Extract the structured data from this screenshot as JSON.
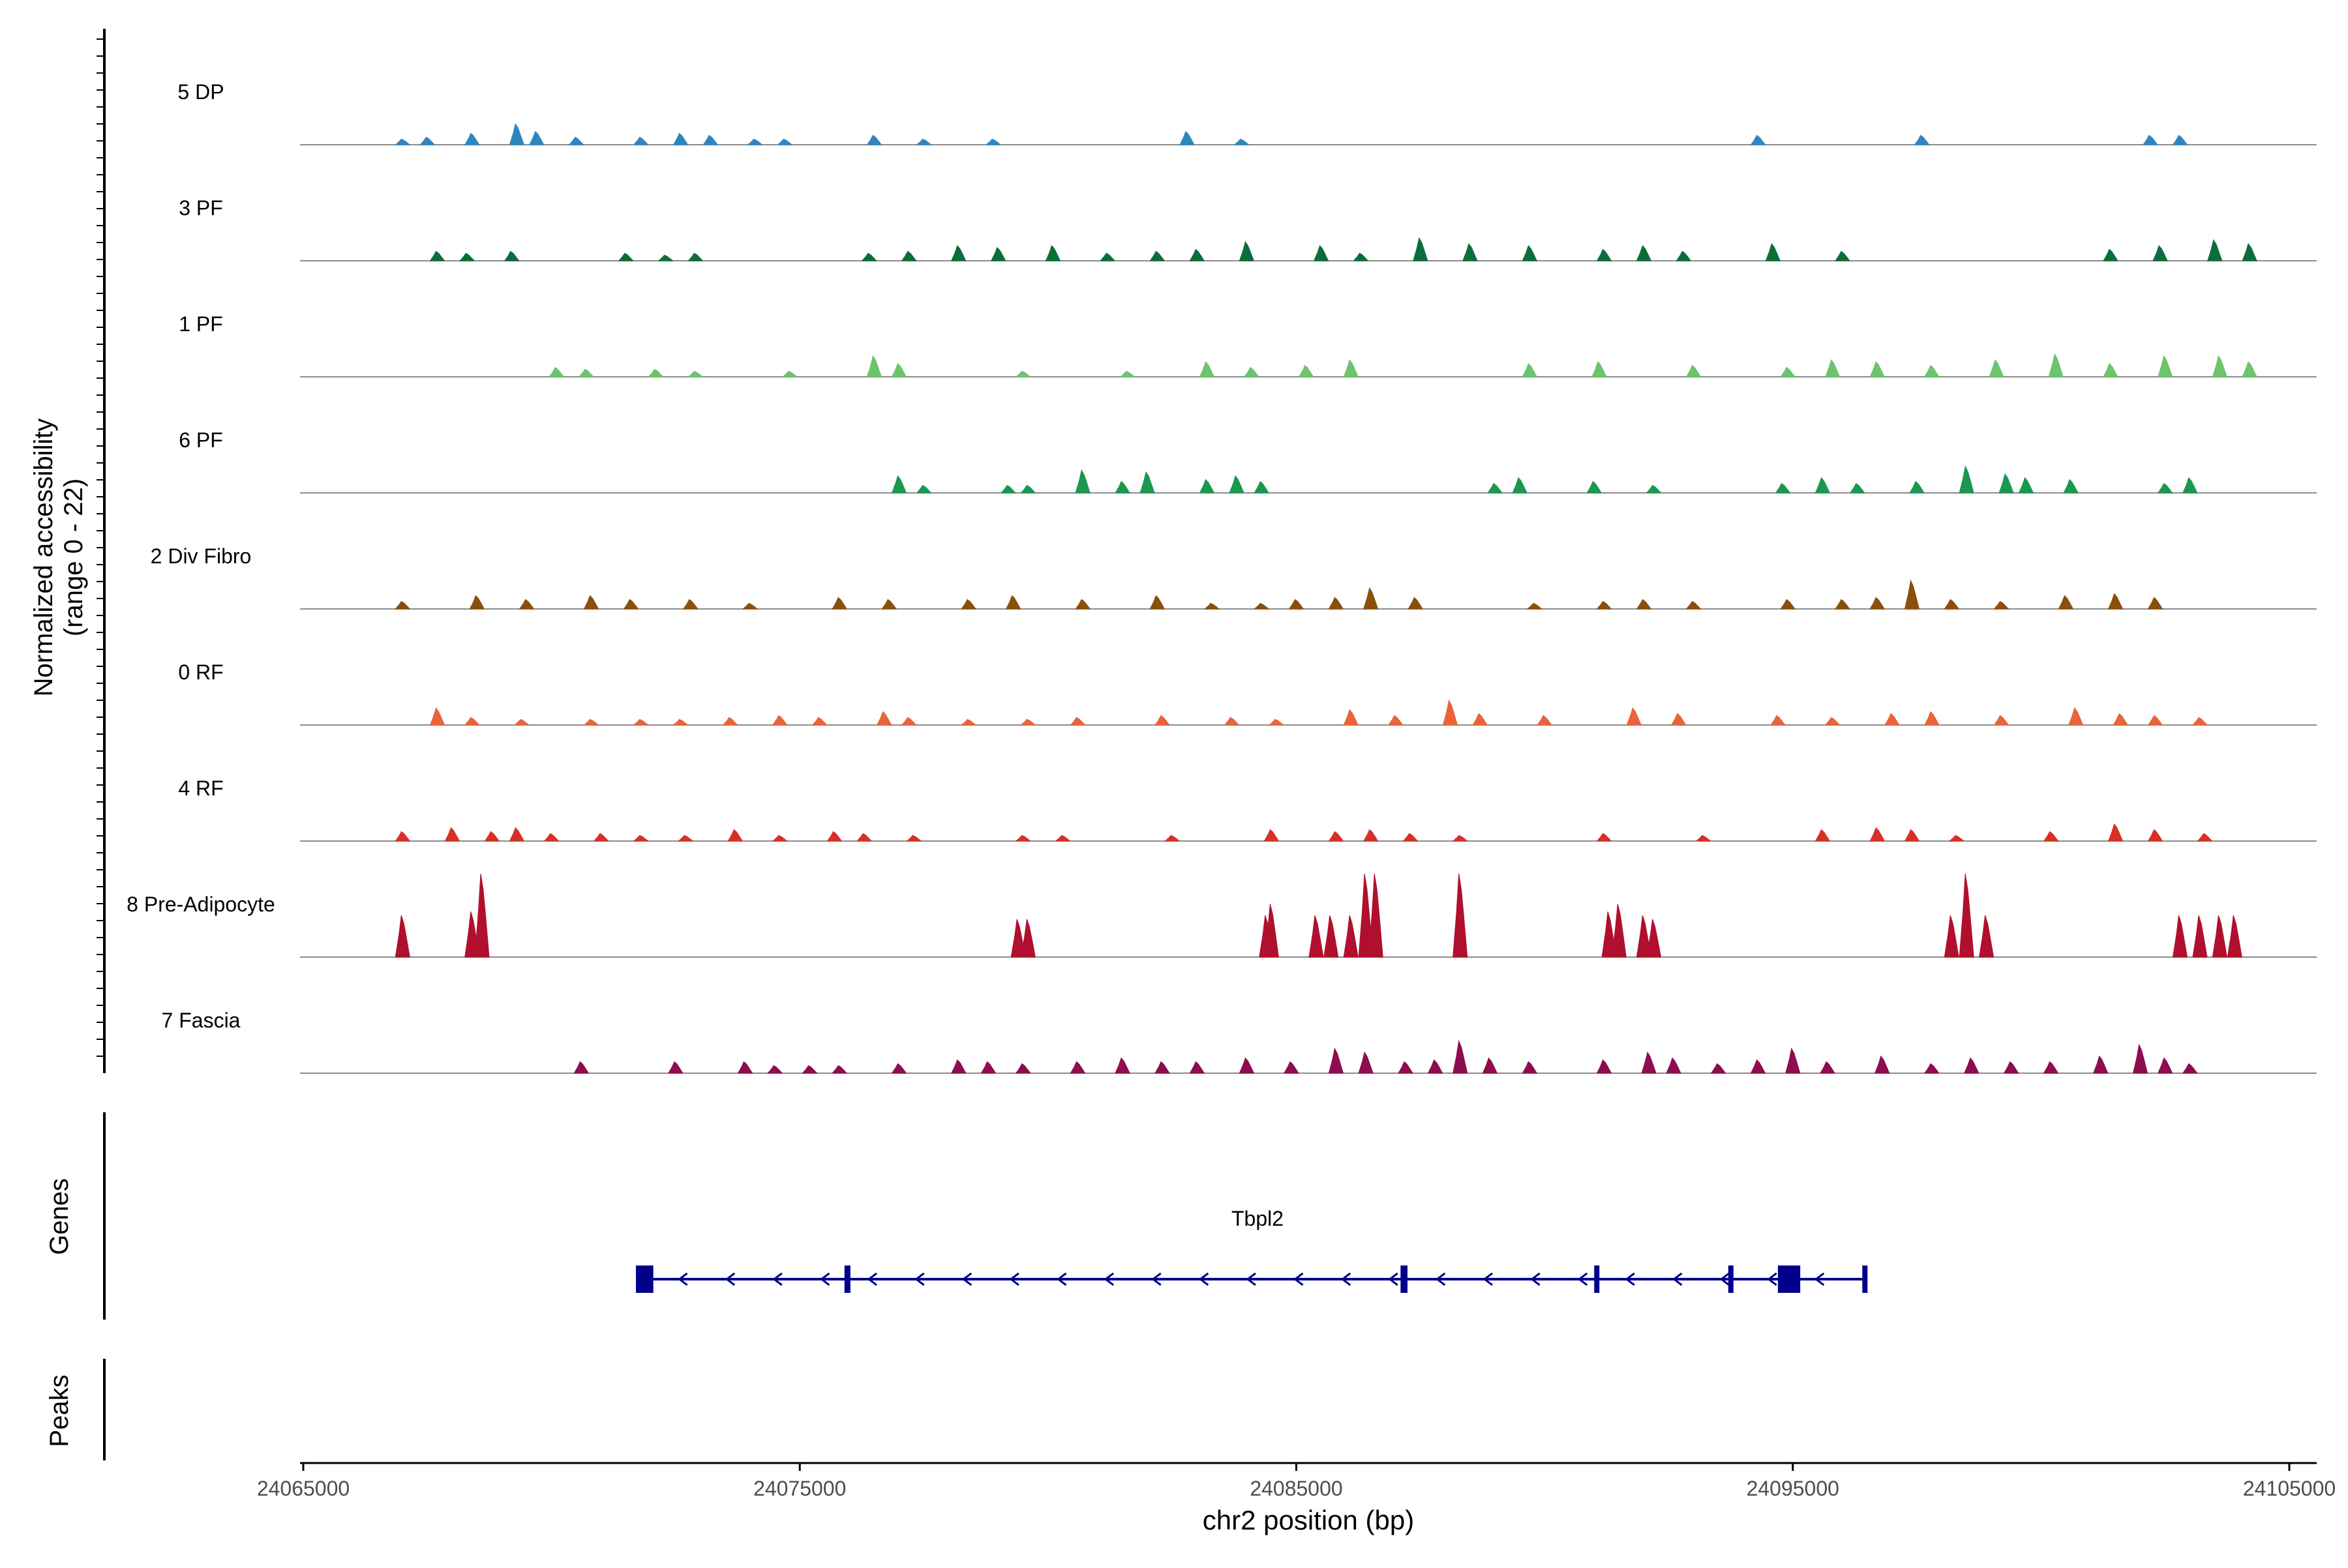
{
  "chart_data": {
    "type": "area",
    "title": "",
    "ylabel_line1": "Normalized accessibility",
    "ylabel_line2": "(range 0 - 22)",
    "xlabel": "chr2 position (bp)",
    "xlim": [
      24065000,
      24105000
    ],
    "x_ticks": [
      24065000,
      24075000,
      24085000,
      24095000,
      24105000
    ],
    "x_tick_labels": [
      "24065000",
      "24075000",
      "24085000",
      "24095000",
      "24105000"
    ],
    "ylim": [
      0,
      22
    ],
    "tracks": [
      {
        "name": "5 DP",
        "color": "#2E86C1",
        "peaks": [
          [
            24067000,
            1.5
          ],
          [
            24067500,
            2.0
          ],
          [
            24068400,
            3.0
          ],
          [
            24069300,
            5.5
          ],
          [
            24069700,
            3.5
          ],
          [
            24070500,
            2.0
          ],
          [
            24071800,
            2.0
          ],
          [
            24072600,
            3.0
          ],
          [
            24073200,
            2.5
          ],
          [
            24074100,
            1.5
          ],
          [
            24074700,
            1.5
          ],
          [
            24076500,
            2.5
          ],
          [
            24077500,
            1.5
          ],
          [
            24078900,
            1.5
          ],
          [
            24082800,
            3.5
          ],
          [
            24083900,
            1.5
          ],
          [
            24094300,
            2.5
          ],
          [
            24097600,
            2.5
          ],
          [
            24102200,
            2.5
          ],
          [
            24102800,
            2.5
          ]
        ]
      },
      {
        "name": "3 PF",
        "color": "#0B6E3A",
        "peaks": [
          [
            24067700,
            2.5
          ],
          [
            24068300,
            2.0
          ],
          [
            24069200,
            2.5
          ],
          [
            24071500,
            2.0
          ],
          [
            24072300,
            1.5
          ],
          [
            24072900,
            2.0
          ],
          [
            24076400,
            2.0
          ],
          [
            24077200,
            2.5
          ],
          [
            24078200,
            4.0
          ],
          [
            24079000,
            3.5
          ],
          [
            24080100,
            4.0
          ],
          [
            24081200,
            2.0
          ],
          [
            24082200,
            2.5
          ],
          [
            24083000,
            3.0
          ],
          [
            24084000,
            5.0
          ],
          [
            24085500,
            4.0
          ],
          [
            24086300,
            2.0
          ],
          [
            24087500,
            6.0
          ],
          [
            24088500,
            4.5
          ],
          [
            24089700,
            4.0
          ],
          [
            24091200,
            3.0
          ],
          [
            24092000,
            4.0
          ],
          [
            24092800,
            2.5
          ],
          [
            24094600,
            4.5
          ],
          [
            24096000,
            2.5
          ],
          [
            24101400,
            3.0
          ],
          [
            24102400,
            4.0
          ],
          [
            24103500,
            5.5
          ],
          [
            24104200,
            4.5
          ]
        ]
      },
      {
        "name": "1 PF",
        "color": "#6CC46C",
        "peaks": [
          [
            24070100,
            2.5
          ],
          [
            24070700,
            2.0
          ],
          [
            24072100,
            2.0
          ],
          [
            24072900,
            1.5
          ],
          [
            24074800,
            1.5
          ],
          [
            24076500,
            5.5
          ],
          [
            24077000,
            3.5
          ],
          [
            24079500,
            1.5
          ],
          [
            24081600,
            1.5
          ],
          [
            24083200,
            4.0
          ],
          [
            24084100,
            2.5
          ],
          [
            24085200,
            3.0
          ],
          [
            24086100,
            4.5
          ],
          [
            24089700,
            3.5
          ],
          [
            24091100,
            4.0
          ],
          [
            24093000,
            3.0
          ],
          [
            24094900,
            2.5
          ],
          [
            24095800,
            4.5
          ],
          [
            24096700,
            4.0
          ],
          [
            24097800,
            3.0
          ],
          [
            24099100,
            4.5
          ],
          [
            24100300,
            6.0
          ],
          [
            24101400,
            3.5
          ],
          [
            24102500,
            5.5
          ],
          [
            24103600,
            5.5
          ],
          [
            24104200,
            4.0
          ]
        ]
      },
      {
        "name": "6 PF",
        "color": "#1A9850",
        "peaks": [
          [
            24077000,
            4.5
          ],
          [
            24077500,
            2.0
          ],
          [
            24079200,
            2.0
          ],
          [
            24079600,
            2.0
          ],
          [
            24080700,
            6.0
          ],
          [
            24081500,
            3.0
          ],
          [
            24082000,
            5.5
          ],
          [
            24083200,
            3.5
          ],
          [
            24083800,
            4.5
          ],
          [
            24084300,
            3.0
          ],
          [
            24089000,
            2.5
          ],
          [
            24089500,
            4.0
          ],
          [
            24091000,
            3.0
          ],
          [
            24092200,
            2.0
          ],
          [
            24094800,
            2.5
          ],
          [
            24095600,
            4.0
          ],
          [
            24096300,
            2.5
          ],
          [
            24097500,
            3.0
          ],
          [
            24098500,
            7.0
          ],
          [
            24099300,
            5.0
          ],
          [
            24099700,
            4.0
          ],
          [
            24100600,
            3.5
          ],
          [
            24102500,
            2.5
          ],
          [
            24103000,
            4.0
          ]
        ]
      },
      {
        "name": "2 Div Fibro",
        "color": "#8B4F0C",
        "peaks": [
          [
            24067000,
            2.0
          ],
          [
            24068500,
            3.5
          ],
          [
            24069500,
            2.5
          ],
          [
            24070800,
            3.5
          ],
          [
            24071600,
            2.5
          ],
          [
            24072800,
            2.5
          ],
          [
            24074000,
            1.5
          ],
          [
            24075800,
            3.0
          ],
          [
            24076800,
            2.5
          ],
          [
            24078400,
            2.5
          ],
          [
            24079300,
            3.5
          ],
          [
            24080700,
            2.5
          ],
          [
            24082200,
            3.5
          ],
          [
            24083300,
            1.5
          ],
          [
            24084300,
            1.5
          ],
          [
            24085000,
            2.5
          ],
          [
            24085800,
            3.0
          ],
          [
            24086500,
            5.5
          ],
          [
            24087400,
            3.0
          ],
          [
            24089800,
            1.5
          ],
          [
            24091200,
            2.0
          ],
          [
            24092000,
            2.5
          ],
          [
            24093000,
            2.0
          ],
          [
            24094900,
            2.5
          ],
          [
            24096000,
            2.5
          ],
          [
            24096700,
            3.0
          ],
          [
            24097400,
            7.5
          ],
          [
            24098200,
            2.5
          ],
          [
            24099200,
            2.0
          ],
          [
            24100500,
            3.5
          ],
          [
            24101500,
            4.0
          ],
          [
            24102300,
            3.0
          ]
        ]
      },
      {
        "name": "0 RF",
        "color": "#E8643A",
        "peaks": [
          [
            24067700,
            4.5
          ],
          [
            24068400,
            2.0
          ],
          [
            24069400,
            1.5
          ],
          [
            24070800,
            1.5
          ],
          [
            24071800,
            1.5
          ],
          [
            24072600,
            1.5
          ],
          [
            24073600,
            2.0
          ],
          [
            24074600,
            2.5
          ],
          [
            24075400,
            2.0
          ],
          [
            24076700,
            3.5
          ],
          [
            24077200,
            2.0
          ],
          [
            24078400,
            1.5
          ],
          [
            24079600,
            1.5
          ],
          [
            24080600,
            2.0
          ],
          [
            24082300,
            2.5
          ],
          [
            24083700,
            2.0
          ],
          [
            24084600,
            1.5
          ],
          [
            24086100,
            4.0
          ],
          [
            24087000,
            2.5
          ],
          [
            24088100,
            6.5
          ],
          [
            24088700,
            3.0
          ],
          [
            24090000,
            2.5
          ],
          [
            24091800,
            4.5
          ],
          [
            24092700,
            3.0
          ],
          [
            24094700,
            2.5
          ],
          [
            24095800,
            2.0
          ],
          [
            24097000,
            3.0
          ],
          [
            24097800,
            3.5
          ],
          [
            24099200,
            2.5
          ],
          [
            24100700,
            4.5
          ],
          [
            24101600,
            3.0
          ],
          [
            24102300,
            2.5
          ],
          [
            24103200,
            2.0
          ]
        ]
      },
      {
        "name": "4 RF",
        "color": "#D73027",
        "peaks": [
          [
            24067000,
            2.5
          ],
          [
            24068000,
            3.5
          ],
          [
            24068800,
            2.5
          ],
          [
            24069300,
            3.5
          ],
          [
            24070000,
            2.0
          ],
          [
            24071000,
            2.0
          ],
          [
            24071800,
            1.5
          ],
          [
            24072700,
            1.5
          ],
          [
            24073700,
            3.0
          ],
          [
            24074600,
            1.5
          ],
          [
            24075700,
            2.5
          ],
          [
            24076300,
            2.0
          ],
          [
            24077300,
            1.5
          ],
          [
            24079500,
            1.5
          ],
          [
            24080300,
            1.5
          ],
          [
            24082500,
            1.5
          ],
          [
            24084500,
            3.0
          ],
          [
            24085800,
            2.5
          ],
          [
            24086500,
            3.0
          ],
          [
            24087300,
            2.0
          ],
          [
            24088300,
            1.5
          ],
          [
            24091200,
            2.0
          ],
          [
            24093200,
            1.5
          ],
          [
            24095600,
            3.0
          ],
          [
            24096700,
            3.5
          ],
          [
            24097400,
            3.0
          ],
          [
            24098300,
            1.5
          ],
          [
            24100200,
            2.5
          ],
          [
            24101500,
            4.5
          ],
          [
            24102300,
            3.0
          ],
          [
            24103300,
            2.0
          ]
        ]
      },
      {
        "name": "8 Pre-Adipocyte",
        "color": "#B0102E",
        "peaks": [
          [
            24067000,
            11.0
          ],
          [
            24068400,
            12.0
          ],
          [
            24068600,
            22.0
          ],
          [
            24079400,
            10.0
          ],
          [
            24079600,
            10.0
          ],
          [
            24084400,
            11.0
          ],
          [
            24084500,
            14.0
          ],
          [
            24085400,
            11.0
          ],
          [
            24085700,
            11.0
          ],
          [
            24086100,
            11.0
          ],
          [
            24086400,
            22.0
          ],
          [
            24086600,
            22.0
          ],
          [
            24088300,
            22.0
          ],
          [
            24091300,
            12.0
          ],
          [
            24091500,
            14.0
          ],
          [
            24092000,
            11.0
          ],
          [
            24092200,
            10.0
          ],
          [
            24098200,
            11.0
          ],
          [
            24098500,
            22.0
          ],
          [
            24098900,
            11.0
          ],
          [
            24102800,
            11.0
          ],
          [
            24103200,
            11.0
          ],
          [
            24103600,
            11.0
          ],
          [
            24103900,
            11.0
          ]
        ]
      },
      {
        "name": "7 Fascia",
        "color": "#8E0C4F",
        "peaks": [
          [
            24070600,
            3.0
          ],
          [
            24072500,
            3.0
          ],
          [
            24073900,
            3.0
          ],
          [
            24074500,
            2.0
          ],
          [
            24075200,
            2.0
          ],
          [
            24075800,
            2.0
          ],
          [
            24077000,
            2.5
          ],
          [
            24078200,
            3.5
          ],
          [
            24078800,
            3.0
          ],
          [
            24079500,
            2.5
          ],
          [
            24080600,
            3.0
          ],
          [
            24081500,
            4.0
          ],
          [
            24082300,
            3.0
          ],
          [
            24083000,
            3.0
          ],
          [
            24084000,
            4.0
          ],
          [
            24084900,
            3.0
          ],
          [
            24085800,
            6.5
          ],
          [
            24086400,
            5.5
          ],
          [
            24087200,
            3.0
          ],
          [
            24087800,
            3.5
          ],
          [
            24088300,
            8.5
          ],
          [
            24088900,
            4.0
          ],
          [
            24089700,
            3.0
          ],
          [
            24091200,
            3.5
          ],
          [
            24092100,
            5.5
          ],
          [
            24092600,
            4.0
          ],
          [
            24093500,
            2.5
          ],
          [
            24094300,
            3.5
          ],
          [
            24095000,
            6.5
          ],
          [
            24095700,
            3.0
          ],
          [
            24096800,
            4.5
          ],
          [
            24097800,
            2.5
          ],
          [
            24098600,
            4.0
          ],
          [
            24099400,
            3.0
          ],
          [
            24100200,
            3.0
          ],
          [
            24101200,
            4.5
          ],
          [
            24102000,
            7.5
          ],
          [
            24102500,
            4.0
          ],
          [
            24103000,
            2.5
          ]
        ]
      }
    ],
    "genes_label": "Genes",
    "peaks_label": "Peaks",
    "gene": {
      "name": "Tbpl2",
      "strand": "-",
      "start": 24071700,
      "end": 24096500,
      "color": "#00008B",
      "exons": [
        [
          24071700,
          24072050
        ],
        [
          24075900,
          24076020
        ],
        [
          24087100,
          24087240
        ],
        [
          24091000,
          24091080
        ],
        [
          24093700,
          24093800
        ],
        [
          24094700,
          24095150
        ],
        [
          24096400,
          24096500
        ]
      ]
    }
  }
}
